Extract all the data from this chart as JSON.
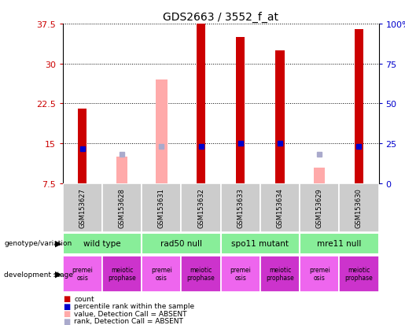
{
  "title": "GDS2663 / 3552_f_at",
  "samples": [
    "GSM153627",
    "GSM153628",
    "GSM153631",
    "GSM153632",
    "GSM153633",
    "GSM153634",
    "GSM153629",
    "GSM153630"
  ],
  "red_bars": [
    21.5,
    0,
    0,
    37.5,
    35.0,
    32.5,
    0,
    36.5
  ],
  "blue_markers": [
    14.0,
    0,
    0,
    14.5,
    15.0,
    15.0,
    0,
    14.5
  ],
  "pink_bars": [
    0,
    12.5,
    27.0,
    0,
    0,
    0,
    10.5,
    0
  ],
  "light_blue_markers": [
    0,
    13.0,
    14.5,
    0,
    0,
    0,
    13.0,
    0
  ],
  "ylim": [
    7.5,
    37.5
  ],
  "yticks_left": [
    7.5,
    15.0,
    22.5,
    30.0,
    37.5
  ],
  "yticks_left_labels": [
    "7.5",
    "15",
    "22.5",
    "30",
    "37.5"
  ],
  "right_tick_positions": [
    7.5,
    15.0,
    22.5,
    30.0,
    37.5
  ],
  "right_tick_labels": [
    "0",
    "25",
    "50",
    "75",
    "100%"
  ],
  "ylabel_left_color": "#cc0000",
  "ylabel_right_color": "#0000cc",
  "bar_width": 0.22,
  "genotype_groups": [
    {
      "label": "wild type",
      "start": 0,
      "end": 2
    },
    {
      "label": "rad50 null",
      "start": 2,
      "end": 4
    },
    {
      "label": "spo11 mutant",
      "start": 4,
      "end": 6
    },
    {
      "label": "mre11 null",
      "start": 6,
      "end": 8
    }
  ],
  "dev_stage_labels": [
    "premei\nosis",
    "meiotic\nprophase",
    "premei\nosis",
    "meiotic\nprophase",
    "premei\nosis",
    "meiotic\nprophase",
    "premei\nosis",
    "meiotic\nprophase"
  ],
  "sample_bg": "#cccccc",
  "genotype_bg": "#88ee99",
  "dev_colors": [
    "#ee66ee",
    "#cc33cc",
    "#ee66ee",
    "#cc33cc",
    "#ee66ee",
    "#cc33cc",
    "#ee66ee",
    "#cc33cc"
  ],
  "legend_colors": [
    "#cc0000",
    "#0000cc",
    "#ffaaaa",
    "#aaaacc"
  ],
  "legend_labels": [
    "count",
    "percentile rank within the sample",
    "value, Detection Call = ABSENT",
    "rank, Detection Call = ABSENT"
  ]
}
